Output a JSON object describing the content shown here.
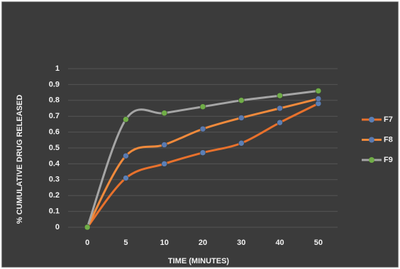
{
  "chart_data": {
    "type": "line",
    "x_label": "TIME (MINUTES)",
    "y_label": "% CUMULATIVE DRUG RELEASED",
    "categories": [
      "0",
      "5",
      "10",
      "20",
      "30",
      "40",
      "50"
    ],
    "series": [
      {
        "name": "F7",
        "color": "#e8712c",
        "marker_color": "#5b7fb5",
        "values": [
          0,
          0.31,
          0.4,
          0.47,
          0.53,
          0.66,
          0.78
        ]
      },
      {
        "name": "F8",
        "color": "#f08a3c",
        "marker_color": "#5a7ab0",
        "values": [
          0,
          0.45,
          0.52,
          0.62,
          0.69,
          0.75,
          0.81
        ]
      },
      {
        "name": "F9",
        "color": "#a5a5a5",
        "marker_color": "#70ad47",
        "values": [
          0,
          0.68,
          0.72,
          0.76,
          0.8,
          0.83,
          0.86
        ]
      }
    ],
    "ylim": [
      0,
      1
    ],
    "yticks": [
      0,
      0.1,
      0.2,
      0.3,
      0.4,
      0.5,
      0.6,
      0.7,
      0.8,
      0.9,
      1
    ],
    "grid": true,
    "legend": "right"
  }
}
